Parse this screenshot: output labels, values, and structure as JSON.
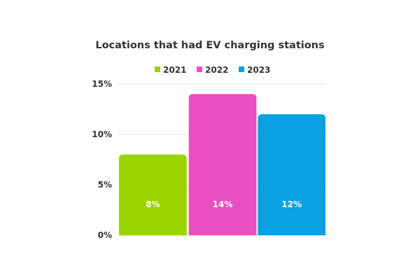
{
  "chart_data": {
    "type": "bar",
    "title": "Locations that had EV charging stations",
    "categories": [
      "2021",
      "2022",
      "2023"
    ],
    "values": [
      8,
      14,
      12
    ],
    "data_labels": [
      "8%",
      "14%",
      "12%"
    ],
    "colors": [
      "#9bd300",
      "#e84fc1",
      "#0aa1e2"
    ],
    "legend": {
      "entries": [
        "2021",
        "2022",
        "2023"
      ],
      "placement": "top"
    },
    "yaxis": {
      "ticks": [
        0,
        5,
        10,
        15
      ],
      "tick_labels": [
        "0%",
        "5%",
        "10%",
        "15%"
      ],
      "ylim": [
        0,
        15
      ]
    },
    "grid": true,
    "xlabel": "",
    "ylabel": ""
  }
}
